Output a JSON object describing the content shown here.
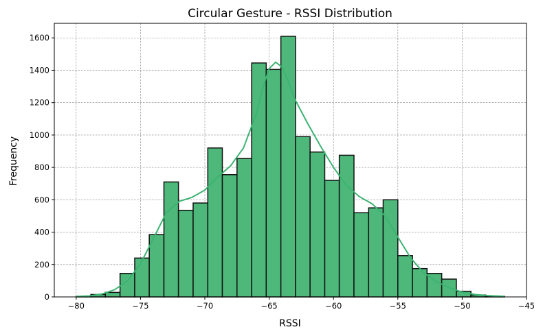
{
  "chart_data": {
    "type": "bar",
    "title": "Circular Gesture - RSSI Distribution",
    "xlabel": "RSSI",
    "ylabel": "Frequency",
    "xlim": [
      -81.7,
      -45.0
    ],
    "ylim": [
      0,
      1690
    ],
    "xticks": [
      -80,
      -75,
      -70,
      -65,
      -60,
      -55,
      -50,
      -45
    ],
    "xtick_labels": [
      "−80",
      "−75",
      "−70",
      "−65",
      "−60",
      "−55",
      "−50",
      "−45"
    ],
    "yticks": [
      0,
      200,
      400,
      600,
      800,
      1000,
      1200,
      1400,
      1600
    ],
    "ytick_labels": [
      "0",
      "200",
      "400",
      "600",
      "800",
      "1000",
      "1200",
      "1400",
      "1600"
    ],
    "grid": true,
    "bar_color": "#4db87a",
    "kde_color": "#3cb371",
    "bins": [
      {
        "x0": -80.0,
        "x1": -78.86,
        "count": 3
      },
      {
        "x0": -78.86,
        "x1": -77.73,
        "count": 15
      },
      {
        "x0": -77.73,
        "x1": -76.59,
        "count": 28
      },
      {
        "x0": -76.59,
        "x1": -75.45,
        "count": 145
      },
      {
        "x0": -75.45,
        "x1": -74.32,
        "count": 240
      },
      {
        "x0": -74.32,
        "x1": -73.18,
        "count": 385
      },
      {
        "x0": -73.18,
        "x1": -72.05,
        "count": 710
      },
      {
        "x0": -72.05,
        "x1": -70.91,
        "count": 535
      },
      {
        "x0": -70.91,
        "x1": -69.77,
        "count": 580
      },
      {
        "x0": -69.77,
        "x1": -68.64,
        "count": 920
      },
      {
        "x0": -68.64,
        "x1": -67.5,
        "count": 755
      },
      {
        "x0": -67.5,
        "x1": -66.36,
        "count": 855
      },
      {
        "x0": -66.36,
        "x1": -65.23,
        "count": 1445
      },
      {
        "x0": -65.23,
        "x1": -64.09,
        "count": 1405
      },
      {
        "x0": -64.09,
        "x1": -62.95,
        "count": 1610
      },
      {
        "x0": -62.95,
        "x1": -61.82,
        "count": 990
      },
      {
        "x0": -61.82,
        "x1": -60.68,
        "count": 895
      },
      {
        "x0": -60.68,
        "x1": -59.55,
        "count": 720
      },
      {
        "x0": -59.55,
        "x1": -58.41,
        "count": 875
      },
      {
        "x0": -58.41,
        "x1": -57.27,
        "count": 520
      },
      {
        "x0": -57.27,
        "x1": -56.14,
        "count": 550
      },
      {
        "x0": -56.14,
        "x1": -55.0,
        "count": 600
      },
      {
        "x0": -55.0,
        "x1": -53.86,
        "count": 255
      },
      {
        "x0": -53.86,
        "x1": -52.73,
        "count": 175
      },
      {
        "x0": -52.73,
        "x1": -51.59,
        "count": 145
      },
      {
        "x0": -51.59,
        "x1": -50.45,
        "count": 110
      },
      {
        "x0": -50.45,
        "x1": -49.32,
        "count": 35
      },
      {
        "x0": -49.32,
        "x1": -48.18,
        "count": 12
      },
      {
        "x0": -48.18,
        "x1": -47.05,
        "count": 5
      },
      {
        "x0": -47.05,
        "x1": -46.7,
        "count": 3
      }
    ],
    "kde": [
      [
        -80.0,
        3
      ],
      [
        -79.0,
        6
      ],
      [
        -78.0,
        18
      ],
      [
        -77.0,
        45
      ],
      [
        -76.0,
        100
      ],
      [
        -75.0,
        205
      ],
      [
        -74.0,
        360
      ],
      [
        -73.0,
        520
      ],
      [
        -72.0,
        590
      ],
      [
        -71.0,
        615
      ],
      [
        -70.0,
        660
      ],
      [
        -69.0,
        740
      ],
      [
        -68.0,
        810
      ],
      [
        -67.0,
        920
      ],
      [
        -66.0,
        1130
      ],
      [
        -65.5,
        1290
      ],
      [
        -65.0,
        1410
      ],
      [
        -64.5,
        1450
      ],
      [
        -64.0,
        1420
      ],
      [
        -63.5,
        1330
      ],
      [
        -63.0,
        1220
      ],
      [
        -62.0,
        1070
      ],
      [
        -61.0,
        930
      ],
      [
        -60.0,
        800
      ],
      [
        -59.0,
        690
      ],
      [
        -58.0,
        620
      ],
      [
        -57.0,
        575
      ],
      [
        -56.0,
        500
      ],
      [
        -55.0,
        370
      ],
      [
        -54.0,
        240
      ],
      [
        -53.0,
        150
      ],
      [
        -52.0,
        95
      ],
      [
        -51.0,
        55
      ],
      [
        -50.0,
        30
      ],
      [
        -49.0,
        15
      ],
      [
        -48.0,
        8
      ],
      [
        -46.7,
        4
      ]
    ]
  }
}
